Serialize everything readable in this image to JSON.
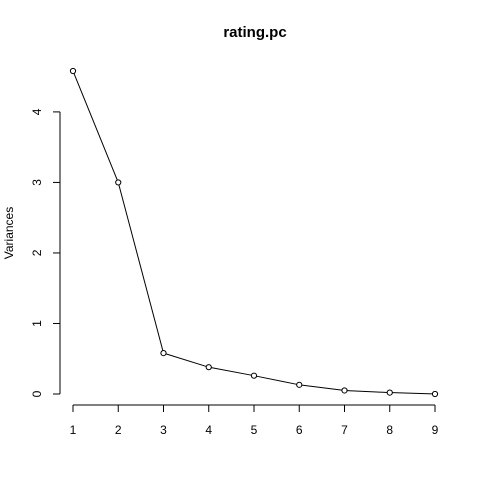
{
  "chart_data": {
    "type": "line",
    "title": "rating.pc",
    "xlabel": "",
    "ylabel": "Variances",
    "x": [
      1,
      2,
      3,
      4,
      5,
      6,
      7,
      8,
      9
    ],
    "series": [
      {
        "values": [
          4.58,
          3.0,
          0.58,
          0.38,
          0.26,
          0.13,
          0.05,
          0.02,
          0.0
        ]
      }
    ],
    "xticks": [
      1,
      2,
      3,
      4,
      5,
      6,
      7,
      8,
      9
    ],
    "yticks": [
      0,
      1,
      2,
      3,
      4
    ],
    "xlim": [
      1,
      9
    ],
    "ylim": [
      0,
      4.58
    ],
    "grid": false,
    "marker": "open-circle"
  }
}
